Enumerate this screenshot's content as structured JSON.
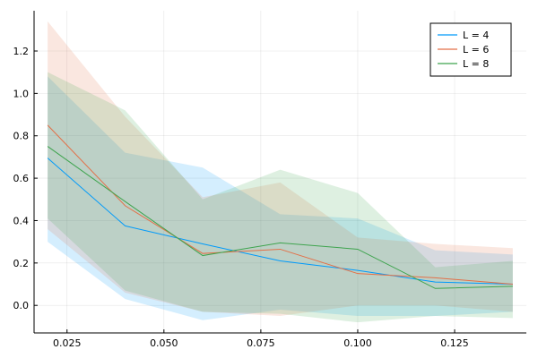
{
  "chart_data": {
    "type": "line",
    "title": "",
    "xlabel": "",
    "ylabel": "",
    "xlim": [
      0.0165,
      0.1435
    ],
    "ylim": [
      -0.13,
      1.39
    ],
    "xticks": [
      0.025,
      0.05,
      0.075,
      0.1,
      0.125
    ],
    "xtick_labels": [
      "0.025",
      "0.050",
      "0.075",
      "0.100",
      "0.125"
    ],
    "yticks": [
      0.0,
      0.2,
      0.4,
      0.6,
      0.8,
      1.0,
      1.2
    ],
    "ytick_labels": [
      "0.0",
      "0.2",
      "0.4",
      "0.6",
      "0.8",
      "1.0",
      "1.2"
    ],
    "grid": true,
    "legend_position": "top-right",
    "x": [
      0.02,
      0.04,
      0.06,
      0.08,
      0.1,
      0.12,
      0.14
    ],
    "series": [
      {
        "name": "L = 4",
        "color": "#009AFA",
        "values": [
          0.695,
          0.375,
          0.29,
          0.21,
          0.165,
          0.11,
          0.1
        ],
        "lower": [
          0.3,
          0.03,
          -0.07,
          -0.02,
          -0.05,
          -0.05,
          -0.03
        ],
        "upper": [
          1.08,
          0.72,
          0.65,
          0.43,
          0.41,
          0.26,
          0.24
        ]
      },
      {
        "name": "L = 6",
        "color": "#E36F47",
        "values": [
          0.85,
          0.47,
          0.245,
          0.265,
          0.15,
          0.13,
          0.1
        ],
        "lower": [
          0.36,
          0.06,
          -0.03,
          -0.05,
          0.0,
          0.0,
          -0.03
        ],
        "upper": [
          1.34,
          0.89,
          0.51,
          0.58,
          0.32,
          0.29,
          0.27
        ]
      },
      {
        "name": "L = 8",
        "color": "#3EA44E",
        "values": [
          0.75,
          0.49,
          0.235,
          0.295,
          0.265,
          0.08,
          0.09
        ],
        "lower": [
          0.41,
          0.07,
          -0.03,
          -0.04,
          -0.08,
          -0.05,
          -0.06
        ],
        "upper": [
          1.1,
          0.92,
          0.5,
          0.64,
          0.53,
          0.18,
          0.21
        ]
      }
    ]
  }
}
